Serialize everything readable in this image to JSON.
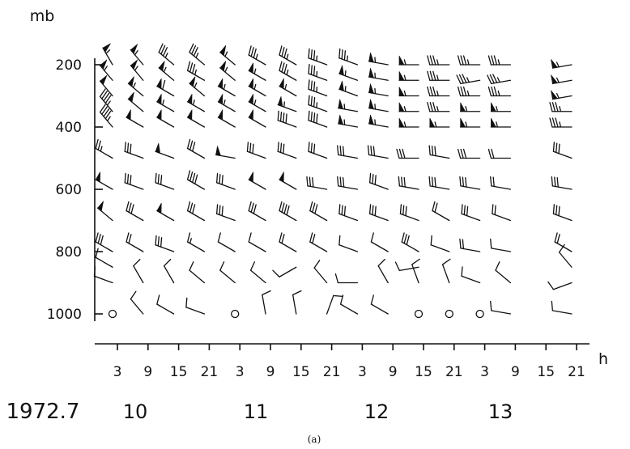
{
  "chart_data": {
    "type": "scatter",
    "yunit": "mb",
    "xunit": "h",
    "y_ticks": [
      200,
      400,
      600,
      800,
      1000
    ],
    "x_ticks": [
      "3",
      "9",
      "15",
      "21",
      "3",
      "9",
      "15",
      "21",
      "3",
      "9",
      "15",
      "21",
      "3",
      "9",
      "15",
      "21"
    ],
    "year_label": "1972.7",
    "day_labels": [
      "10",
      "11",
      "12",
      "13"
    ],
    "caption": "(a)",
    "ylim": [
      1000,
      200
    ],
    "observations": [
      {
        "x_index": 0,
        "levels": [
          [
            200,
            330,
            55
          ],
          [
            250,
            320,
            55
          ],
          [
            300,
            320,
            50
          ],
          [
            350,
            320,
            45
          ],
          [
            400,
            320,
            45
          ],
          [
            500,
            300,
            25
          ],
          [
            600,
            300,
            50
          ],
          [
            700,
            310,
            50
          ],
          [
            800,
            300,
            30
          ],
          [
            850,
            300,
            10
          ],
          [
            900,
            290,
            10
          ],
          [
            1000,
            0,
            0
          ]
        ]
      },
      {
        "x_index": 1,
        "levels": [
          [
            200,
            320,
            55
          ],
          [
            250,
            320,
            55
          ],
          [
            300,
            310,
            55
          ],
          [
            350,
            310,
            50
          ],
          [
            400,
            300,
            50
          ],
          [
            500,
            290,
            30
          ],
          [
            600,
            290,
            30
          ],
          [
            700,
            300,
            30
          ],
          [
            800,
            300,
            20
          ],
          [
            900,
            330,
            10
          ],
          [
            1000,
            320,
            10
          ]
        ]
      },
      {
        "x_index": 2,
        "levels": [
          [
            200,
            310,
            35
          ],
          [
            250,
            310,
            55
          ],
          [
            300,
            300,
            60
          ],
          [
            350,
            300,
            55
          ],
          [
            400,
            300,
            50
          ],
          [
            500,
            290,
            50
          ],
          [
            600,
            290,
            30
          ],
          [
            700,
            300,
            50
          ],
          [
            800,
            290,
            30
          ],
          [
            900,
            330,
            10
          ],
          [
            1000,
            300,
            10
          ]
        ]
      },
      {
        "x_index": 3,
        "levels": [
          [
            200,
            310,
            35
          ],
          [
            250,
            300,
            35
          ],
          [
            300,
            310,
            55
          ],
          [
            350,
            300,
            55
          ],
          [
            400,
            300,
            50
          ],
          [
            500,
            300,
            30
          ],
          [
            600,
            300,
            40
          ],
          [
            700,
            300,
            30
          ],
          [
            800,
            300,
            15
          ],
          [
            900,
            310,
            10
          ],
          [
            1000,
            290,
            10
          ]
        ]
      },
      {
        "x_index": 4,
        "levels": [
          [
            200,
            310,
            55
          ],
          [
            250,
            310,
            55
          ],
          [
            300,
            300,
            55
          ],
          [
            350,
            300,
            55
          ],
          [
            400,
            300,
            50
          ],
          [
            500,
            280,
            50
          ],
          [
            600,
            290,
            30
          ],
          [
            700,
            290,
            30
          ],
          [
            800,
            300,
            10
          ],
          [
            900,
            310,
            10
          ],
          [
            1000,
            0,
            0
          ]
        ]
      },
      {
        "x_index": 5,
        "levels": [
          [
            200,
            300,
            35
          ],
          [
            250,
            300,
            55
          ],
          [
            300,
            300,
            55
          ],
          [
            350,
            300,
            55
          ],
          [
            400,
            300,
            50
          ],
          [
            500,
            290,
            30
          ],
          [
            600,
            300,
            50
          ],
          [
            700,
            300,
            30
          ],
          [
            800,
            300,
            10
          ],
          [
            900,
            310,
            10
          ],
          [
            1000,
            350,
            10
          ]
        ]
      },
      {
        "x_index": 6,
        "levels": [
          [
            200,
            300,
            35
          ],
          [
            250,
            300,
            35
          ],
          [
            300,
            300,
            55
          ],
          [
            350,
            290,
            55
          ],
          [
            400,
            290,
            40
          ],
          [
            500,
            290,
            30
          ],
          [
            600,
            300,
            50
          ],
          [
            700,
            300,
            40
          ],
          [
            800,
            300,
            20
          ],
          [
            850,
            240,
            10
          ],
          [
            1000,
            350,
            10
          ]
        ]
      },
      {
        "x_index": 7,
        "levels": [
          [
            200,
            290,
            35
          ],
          [
            250,
            290,
            35
          ],
          [
            300,
            290,
            35
          ],
          [
            350,
            290,
            35
          ],
          [
            400,
            290,
            40
          ],
          [
            500,
            290,
            30
          ],
          [
            600,
            280,
            30
          ],
          [
            700,
            300,
            30
          ],
          [
            800,
            300,
            20
          ],
          [
            900,
            320,
            10
          ],
          [
            1000,
            20,
            10
          ]
        ]
      },
      {
        "x_index": 8,
        "levels": [
          [
            200,
            290,
            35
          ],
          [
            250,
            290,
            55
          ],
          [
            300,
            290,
            55
          ],
          [
            350,
            280,
            55
          ],
          [
            400,
            280,
            55
          ],
          [
            500,
            280,
            30
          ],
          [
            600,
            280,
            30
          ],
          [
            700,
            290,
            30
          ],
          [
            800,
            290,
            10
          ],
          [
            900,
            270,
            10
          ],
          [
            1000,
            300,
            10
          ]
        ]
      },
      {
        "x_index": 9,
        "levels": [
          [
            200,
            280,
            55
          ],
          [
            250,
            280,
            55
          ],
          [
            300,
            280,
            55
          ],
          [
            350,
            280,
            55
          ],
          [
            400,
            280,
            55
          ],
          [
            500,
            280,
            30
          ],
          [
            600,
            290,
            30
          ],
          [
            700,
            290,
            30
          ],
          [
            800,
            300,
            10
          ],
          [
            900,
            330,
            10
          ],
          [
            1000,
            300,
            10
          ]
        ]
      },
      {
        "x_index": 10,
        "levels": [
          [
            200,
            270,
            55
          ],
          [
            250,
            270,
            55
          ],
          [
            300,
            270,
            55
          ],
          [
            350,
            270,
            55
          ],
          [
            400,
            270,
            55
          ],
          [
            500,
            270,
            30
          ],
          [
            600,
            280,
            30
          ],
          [
            700,
            290,
            30
          ],
          [
            800,
            300,
            30
          ],
          [
            850,
            260,
            10
          ],
          [
            900,
            340,
            10
          ],
          [
            1000,
            0,
            0
          ]
        ]
      },
      {
        "x_index": 11,
        "levels": [
          [
            200,
            270,
            35
          ],
          [
            250,
            270,
            35
          ],
          [
            300,
            270,
            35
          ],
          [
            350,
            270,
            35
          ],
          [
            400,
            270,
            55
          ],
          [
            500,
            280,
            30
          ],
          [
            600,
            280,
            30
          ],
          [
            700,
            300,
            20
          ],
          [
            800,
            290,
            10
          ],
          [
            900,
            340,
            10
          ],
          [
            1000,
            0,
            0
          ]
        ]
      },
      {
        "x_index": 12,
        "levels": [
          [
            200,
            270,
            35
          ],
          [
            250,
            260,
            35
          ],
          [
            300,
            270,
            35
          ],
          [
            350,
            270,
            55
          ],
          [
            400,
            270,
            55
          ],
          [
            500,
            270,
            30
          ],
          [
            600,
            280,
            30
          ],
          [
            700,
            290,
            30
          ],
          [
            800,
            280,
            20
          ],
          [
            900,
            290,
            10
          ],
          [
            1000,
            0,
            0
          ]
        ]
      },
      {
        "x_index": 13,
        "levels": [
          [
            200,
            270,
            35
          ],
          [
            250,
            260,
            35
          ],
          [
            300,
            270,
            35
          ],
          [
            350,
            270,
            55
          ],
          [
            400,
            270,
            55
          ],
          [
            500,
            270,
            20
          ],
          [
            600,
            280,
            20
          ],
          [
            700,
            290,
            20
          ],
          [
            800,
            280,
            10
          ],
          [
            900,
            310,
            10
          ],
          [
            1000,
            280,
            10
          ]
        ]
      },
      {
        "x_index": 15,
        "levels": [
          [
            200,
            260,
            55
          ],
          [
            250,
            260,
            55
          ],
          [
            300,
            260,
            55
          ],
          [
            350,
            270,
            35
          ],
          [
            400,
            270,
            35
          ],
          [
            500,
            290,
            30
          ],
          [
            600,
            280,
            30
          ],
          [
            700,
            290,
            30
          ],
          [
            800,
            300,
            20
          ],
          [
            850,
            320,
            10
          ],
          [
            900,
            250,
            10
          ],
          [
            1000,
            280,
            10
          ]
        ]
      }
    ]
  }
}
